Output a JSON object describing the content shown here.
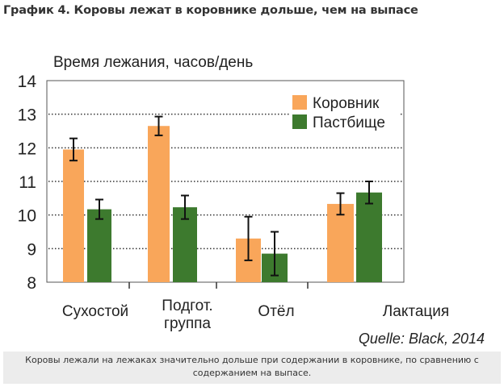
{
  "page_title": "График 4. Коровы лежат в коровнике дольше, чем на выпасе",
  "caption": "Коровы лежали на лежаках значительно дольше при содержании в коровнике, по сравнению с содержанием на выпасе.",
  "chart_data": {
    "type": "bar",
    "title": "Время лежания, часов/день",
    "xlabel": "",
    "ylabel": "Время лежания, часов/день",
    "ylim": [
      8,
      14
    ],
    "yticks": [
      8,
      9,
      10,
      11,
      12,
      13,
      14
    ],
    "grid": true,
    "legend_position": "top-right",
    "categories": [
      "Сухостой",
      "Подгот. группа",
      "Отёл",
      "Лактация"
    ],
    "category_lines": [
      [
        "Сухостой"
      ],
      [
        "Подгот.",
        "группа"
      ],
      [
        "Отёл"
      ],
      [
        "Лактация"
      ]
    ],
    "series": [
      {
        "name": "Коровник",
        "color": "#f9a65a",
        "values": [
          11.95,
          12.65,
          9.3,
          10.33
        ],
        "error": [
          0.33,
          0.28,
          0.65,
          0.32
        ]
      },
      {
        "name": "Пастбище",
        "color": "#3d7a2e",
        "values": [
          10.17,
          10.23,
          8.85,
          10.67
        ],
        "error": [
          0.29,
          0.35,
          0.65,
          0.33
        ]
      }
    ],
    "source": "Quelle: Black, 2014"
  }
}
